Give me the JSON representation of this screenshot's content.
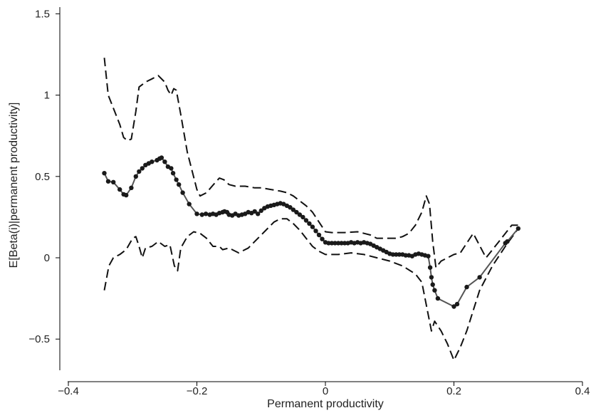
{
  "chart_data": {
    "type": "line",
    "title": "",
    "xlabel": "Permanent productivity",
    "ylabel": "E[Beta(i)|permanent productivity]",
    "xlim": [
      -0.4,
      0.4
    ],
    "ylim": [
      -0.7,
      1.55
    ],
    "x_ticks": [
      -0.4,
      -0.2,
      0,
      0.2,
      0.4
    ],
    "x_tick_labels": [
      "−0.4",
      "−0.2",
      "0",
      "0.2",
      "0.4"
    ],
    "y_ticks": [
      -0.5,
      0,
      0.5,
      1,
      1.5
    ],
    "y_tick_labels": [
      "−0.5",
      "0",
      "0.5",
      "1",
      "1.5"
    ],
    "grid": false,
    "legend": "none",
    "colors": {
      "estimate": "#555555",
      "markers": "#1a1a1a",
      "bands": "#111111"
    },
    "series": [
      {
        "style": "solid-with-markers",
        "points": [
          [
            -0.344,
            0.52
          ],
          [
            -0.338,
            0.47
          ],
          [
            -0.33,
            0.465
          ],
          [
            -0.32,
            0.42
          ],
          [
            -0.314,
            0.39
          ],
          [
            -0.31,
            0.385
          ],
          [
            -0.302,
            0.43
          ],
          [
            -0.295,
            0.5
          ],
          [
            -0.29,
            0.53
          ],
          [
            -0.285,
            0.55
          ],
          [
            -0.28,
            0.57
          ],
          [
            -0.275,
            0.58
          ],
          [
            -0.27,
            0.59
          ],
          [
            -0.262,
            0.6
          ],
          [
            -0.258,
            0.61
          ],
          [
            -0.255,
            0.615
          ],
          [
            -0.25,
            0.59
          ],
          [
            -0.245,
            0.56
          ],
          [
            -0.24,
            0.55
          ],
          [
            -0.237,
            0.52
          ],
          [
            -0.232,
            0.48
          ],
          [
            -0.228,
            0.45
          ],
          [
            -0.222,
            0.4
          ],
          [
            -0.212,
            0.33
          ],
          [
            -0.2,
            0.27
          ],
          [
            -0.192,
            0.265
          ],
          [
            -0.186,
            0.27
          ],
          [
            -0.18,
            0.265
          ],
          [
            -0.175,
            0.27
          ],
          [
            -0.17,
            0.265
          ],
          [
            -0.165,
            0.275
          ],
          [
            -0.16,
            0.28
          ],
          [
            -0.157,
            0.285
          ],
          [
            -0.153,
            0.28
          ],
          [
            -0.15,
            0.265
          ],
          [
            -0.145,
            0.26
          ],
          [
            -0.14,
            0.27
          ],
          [
            -0.135,
            0.26
          ],
          [
            -0.13,
            0.265
          ],
          [
            -0.125,
            0.27
          ],
          [
            -0.12,
            0.28
          ],
          [
            -0.115,
            0.275
          ],
          [
            -0.11,
            0.285
          ],
          [
            -0.105,
            0.27
          ],
          [
            -0.1,
            0.29
          ],
          [
            -0.095,
            0.305
          ],
          [
            -0.09,
            0.315
          ],
          [
            -0.085,
            0.32
          ],
          [
            -0.08,
            0.325
          ],
          [
            -0.075,
            0.33
          ],
          [
            -0.07,
            0.335
          ],
          [
            -0.065,
            0.33
          ],
          [
            -0.06,
            0.32
          ],
          [
            -0.055,
            0.31
          ],
          [
            -0.05,
            0.295
          ],
          [
            -0.045,
            0.28
          ],
          [
            -0.04,
            0.265
          ],
          [
            -0.035,
            0.25
          ],
          [
            -0.03,
            0.23
          ],
          [
            -0.025,
            0.21
          ],
          [
            -0.02,
            0.19
          ],
          [
            -0.015,
            0.165
          ],
          [
            -0.01,
            0.14
          ],
          [
            -0.005,
            0.115
          ],
          [
            0.0,
            0.095
          ],
          [
            0.005,
            0.09
          ],
          [
            0.01,
            0.09
          ],
          [
            0.015,
            0.09
          ],
          [
            0.02,
            0.09
          ],
          [
            0.025,
            0.09
          ],
          [
            0.03,
            0.09
          ],
          [
            0.035,
            0.09
          ],
          [
            0.04,
            0.095
          ],
          [
            0.045,
            0.09
          ],
          [
            0.05,
            0.095
          ],
          [
            0.055,
            0.09
          ],
          [
            0.06,
            0.095
          ],
          [
            0.065,
            0.09
          ],
          [
            0.07,
            0.085
          ],
          [
            0.075,
            0.075
          ],
          [
            0.08,
            0.065
          ],
          [
            0.085,
            0.055
          ],
          [
            0.09,
            0.045
          ],
          [
            0.095,
            0.035
          ],
          [
            0.1,
            0.025
          ],
          [
            0.105,
            0.02
          ],
          [
            0.11,
            0.02
          ],
          [
            0.115,
            0.02
          ],
          [
            0.12,
            0.02
          ],
          [
            0.125,
            0.015
          ],
          [
            0.13,
            0.015
          ],
          [
            0.135,
            0.01
          ],
          [
            0.14,
            0.02
          ],
          [
            0.145,
            0.025
          ],
          [
            0.15,
            0.02
          ],
          [
            0.155,
            0.015
          ],
          [
            0.16,
            0.01
          ],
          [
            0.163,
            -0.06
          ],
          [
            0.165,
            -0.12
          ],
          [
            0.167,
            -0.165
          ],
          [
            0.17,
            -0.2
          ],
          [
            0.175,
            -0.25
          ],
          [
            0.2,
            -0.3
          ],
          [
            0.205,
            -0.285
          ],
          [
            0.22,
            -0.18
          ],
          [
            0.24,
            -0.12
          ],
          [
            0.28,
            0.09
          ],
          [
            0.283,
            0.1
          ],
          [
            0.3,
            0.18
          ]
        ]
      },
      {
        "style": "dashed",
        "points": [
          [
            -0.344,
            1.23
          ],
          [
            -0.338,
            1.0
          ],
          [
            -0.33,
            0.92
          ],
          [
            -0.32,
            0.82
          ],
          [
            -0.314,
            0.74
          ],
          [
            -0.308,
            0.72
          ],
          [
            -0.302,
            0.73
          ],
          [
            -0.295,
            0.9
          ],
          [
            -0.29,
            1.05
          ],
          [
            -0.28,
            1.08
          ],
          [
            -0.27,
            1.1
          ],
          [
            -0.26,
            1.12
          ],
          [
            -0.25,
            1.08
          ],
          [
            -0.245,
            1.03
          ],
          [
            -0.24,
            1.0
          ],
          [
            -0.236,
            1.04
          ],
          [
            -0.232,
            1.03
          ],
          [
            -0.225,
            0.88
          ],
          [
            -0.215,
            0.65
          ],
          [
            -0.2,
            0.42
          ],
          [
            -0.195,
            0.38
          ],
          [
            -0.185,
            0.4
          ],
          [
            -0.172,
            0.46
          ],
          [
            -0.165,
            0.49
          ],
          [
            -0.158,
            0.48
          ],
          [
            -0.15,
            0.45
          ],
          [
            -0.14,
            0.44
          ],
          [
            -0.125,
            0.44
          ],
          [
            -0.11,
            0.43
          ],
          [
            -0.1,
            0.43
          ],
          [
            -0.085,
            0.42
          ],
          [
            -0.07,
            0.41
          ],
          [
            -0.06,
            0.4
          ],
          [
            -0.05,
            0.38
          ],
          [
            -0.04,
            0.35
          ],
          [
            -0.03,
            0.32
          ],
          [
            -0.02,
            0.28
          ],
          [
            -0.01,
            0.22
          ],
          [
            0.0,
            0.16
          ],
          [
            0.01,
            0.155
          ],
          [
            0.03,
            0.155
          ],
          [
            0.05,
            0.16
          ],
          [
            0.06,
            0.15
          ],
          [
            0.07,
            0.14
          ],
          [
            0.08,
            0.12
          ],
          [
            0.09,
            0.12
          ],
          [
            0.1,
            0.12
          ],
          [
            0.11,
            0.12
          ],
          [
            0.12,
            0.13
          ],
          [
            0.13,
            0.15
          ],
          [
            0.14,
            0.2
          ],
          [
            0.15,
            0.28
          ],
          [
            0.157,
            0.38
          ],
          [
            0.162,
            0.33
          ],
          [
            0.167,
            0.1
          ],
          [
            0.172,
            -0.06
          ],
          [
            0.18,
            -0.02
          ],
          [
            0.2,
            0.02
          ],
          [
            0.21,
            0.03
          ],
          [
            0.23,
            0.15
          ],
          [
            0.25,
            0.0
          ],
          [
            0.27,
            0.1
          ],
          [
            0.29,
            0.2
          ],
          [
            0.3,
            0.2
          ]
        ]
      },
      {
        "style": "dashed",
        "points": [
          [
            -0.344,
            -0.2
          ],
          [
            -0.337,
            -0.05
          ],
          [
            -0.33,
            0.0
          ],
          [
            -0.32,
            0.02
          ],
          [
            -0.31,
            0.05
          ],
          [
            -0.3,
            0.12
          ],
          [
            -0.295,
            0.13
          ],
          [
            -0.29,
            0.07
          ],
          [
            -0.285,
            0.0
          ],
          [
            -0.28,
            0.06
          ],
          [
            -0.27,
            0.07
          ],
          [
            -0.26,
            0.1
          ],
          [
            -0.25,
            0.07
          ],
          [
            -0.242,
            0.08
          ],
          [
            -0.235,
            -0.05
          ],
          [
            -0.23,
            -0.08
          ],
          [
            -0.225,
            0.06
          ],
          [
            -0.215,
            0.13
          ],
          [
            -0.205,
            0.16
          ],
          [
            -0.195,
            0.15
          ],
          [
            -0.185,
            0.12
          ],
          [
            -0.175,
            0.07
          ],
          [
            -0.165,
            0.07
          ],
          [
            -0.16,
            0.05
          ],
          [
            -0.15,
            0.06
          ],
          [
            -0.135,
            0.03
          ],
          [
            -0.12,
            0.06
          ],
          [
            -0.1,
            0.14
          ],
          [
            -0.08,
            0.22
          ],
          [
            -0.07,
            0.24
          ],
          [
            -0.06,
            0.24
          ],
          [
            -0.05,
            0.21
          ],
          [
            -0.04,
            0.17
          ],
          [
            -0.03,
            0.12
          ],
          [
            -0.02,
            0.07
          ],
          [
            -0.01,
            0.04
          ],
          [
            0.0,
            0.02
          ],
          [
            0.02,
            0.02
          ],
          [
            0.04,
            0.03
          ],
          [
            0.06,
            0.02
          ],
          [
            0.08,
            0.0
          ],
          [
            0.1,
            -0.02
          ],
          [
            0.12,
            -0.05
          ],
          [
            0.14,
            -0.1
          ],
          [
            0.15,
            -0.15
          ],
          [
            0.155,
            -0.25
          ],
          [
            0.16,
            -0.35
          ],
          [
            0.165,
            -0.45
          ],
          [
            0.17,
            -0.39
          ],
          [
            0.18,
            -0.45
          ],
          [
            0.19,
            -0.53
          ],
          [
            0.2,
            -0.63
          ],
          [
            0.21,
            -0.55
          ],
          [
            0.22,
            -0.45
          ],
          [
            0.24,
            -0.2
          ],
          [
            0.26,
            -0.05
          ],
          [
            0.28,
            0.07
          ],
          [
            0.3,
            0.18
          ]
        ]
      }
    ]
  }
}
